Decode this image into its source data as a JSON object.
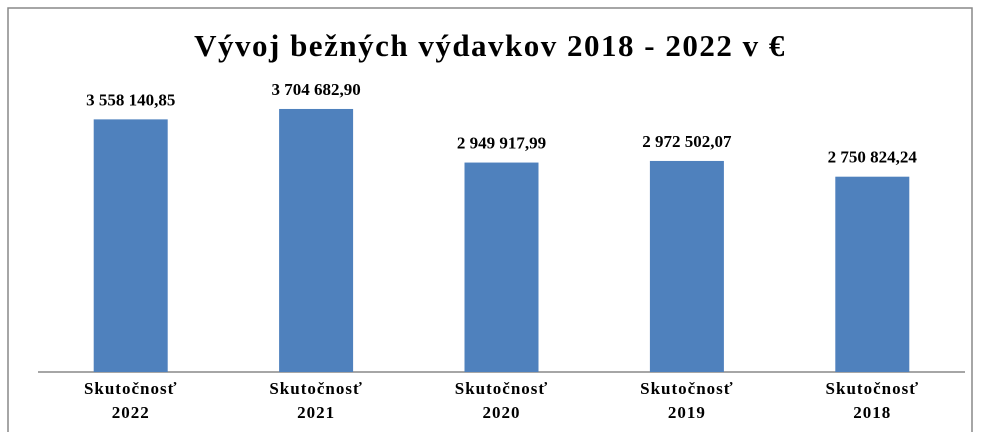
{
  "chart_data": {
    "type": "bar",
    "title": "Vývoj bežných výdavkov 2018 - 2022 v €",
    "categories": [
      "Skutočnosť 2022",
      "Skutočnosť 2021",
      "Skutočnosť 2020",
      "Skutočnosť 2019",
      "Skutočnosť 2018"
    ],
    "values": [
      3558140.85,
      3704682.9,
      2949917.99,
      2972502.07,
      2750824.24
    ],
    "value_labels": [
      "3 558 140,85",
      "3 704 682,90",
      "2 949 917,99",
      "2 972 502,07",
      "2 750 824,24"
    ],
    "color": "#4f81bd",
    "ylim": [
      0,
      4000000
    ]
  }
}
